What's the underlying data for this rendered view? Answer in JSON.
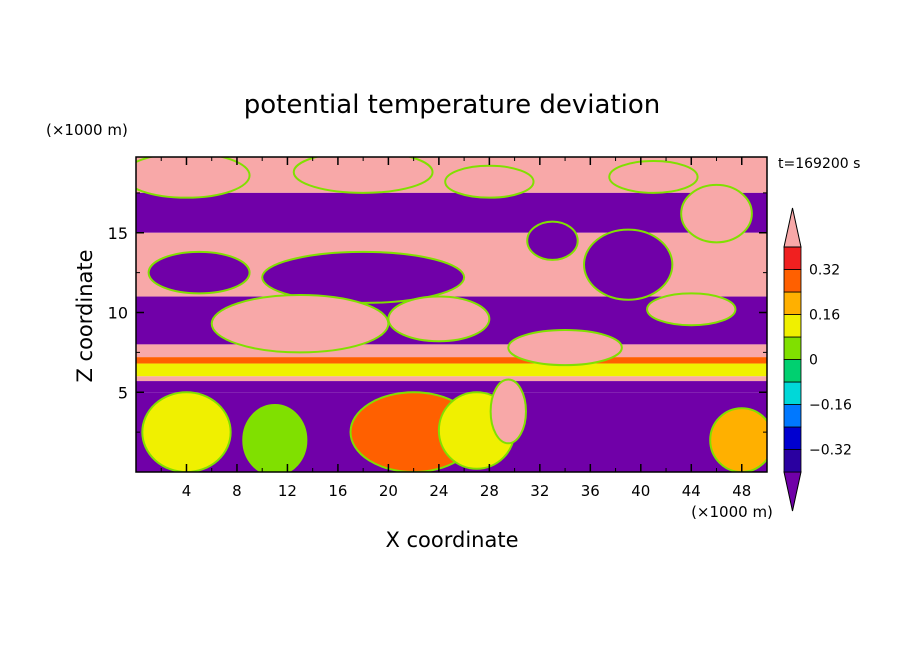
{
  "chart_data": {
    "type": "heatmap",
    "title": "potential temperature deviation",
    "xlabel": "X coordinate",
    "ylabel": "Z coordinate",
    "x_unit": "(×1000 m)",
    "y_unit": "(×1000 m)",
    "time_label": "t=169200 s",
    "xlim": [
      0,
      50
    ],
    "ylim": [
      0,
      19.75
    ],
    "x_ticks": [
      4,
      8,
      12,
      16,
      20,
      24,
      28,
      32,
      36,
      40,
      44,
      48
    ],
    "y_ticks": [
      5,
      10,
      15
    ],
    "colorbar": {
      "tick_labels": [
        "0.32",
        "0.16",
        "0",
        "−0.16",
        "−0.32"
      ],
      "tick_values": [
        0.32,
        0.16,
        0,
        -0.16,
        -0.32
      ],
      "levels": [
        -0.4,
        -0.32,
        -0.24,
        -0.16,
        -0.08,
        0,
        0.08,
        0.16,
        0.24,
        0.32,
        0.4
      ],
      "colors": [
        "#7000a8",
        "#2a00a0",
        "#0000d0",
        "#0078ff",
        "#00d8d8",
        "#00d070",
        "#80e000",
        "#f0f000",
        "#ffb000",
        "#ff6000",
        "#f02020",
        "#f8a8a8"
      ],
      "extend": "both"
    },
    "bands": [
      {
        "z": [
          17.5,
          19.75
        ],
        "value": 0.5
      },
      {
        "z": [
          15,
          17.5
        ],
        "value": -0.5
      },
      {
        "z": [
          11,
          15
        ],
        "value": 0.5
      },
      {
        "z": [
          8,
          11
        ],
        "value": -0.5
      },
      {
        "z": [
          7.2,
          8
        ],
        "value": 0.4
      },
      {
        "z": [
          6.8,
          7.2
        ],
        "value": 0.3
      },
      {
        "z": [
          6.0,
          6.8
        ],
        "value": 0.15
      },
      {
        "z": [
          5.7,
          6.0
        ],
        "value": 0.5
      },
      {
        "z": [
          5.0,
          5.7
        ],
        "value": -0.5
      },
      {
        "z": [
          0,
          5.0
        ],
        "value": -0.45
      }
    ],
    "blobs": [
      {
        "x": 4,
        "z": 18.6,
        "rx": 5,
        "rz": 1.4,
        "value": 0.5
      },
      {
        "x": 18,
        "z": 18.8,
        "rx": 5.5,
        "rz": 1.3,
        "value": 0.5
      },
      {
        "x": 28,
        "z": 18.2,
        "rx": 3.5,
        "rz": 1.0,
        "value": 0.5
      },
      {
        "x": 41,
        "z": 18.5,
        "rx": 3.5,
        "rz": 1.0,
        "value": 0.5
      },
      {
        "x": 46,
        "z": 16.2,
        "rx": 2.8,
        "rz": 1.8,
        "value": 0.5
      },
      {
        "x": 33,
        "z": 14.5,
        "rx": 2.0,
        "rz": 1.2,
        "value": -0.5
      },
      {
        "x": 39,
        "z": 13.0,
        "rx": 3.5,
        "rz": 2.2,
        "value": -0.5
      },
      {
        "x": 18,
        "z": 12.2,
        "rx": 8.0,
        "rz": 1.6,
        "value": -0.5
      },
      {
        "x": 5,
        "z": 12.5,
        "rx": 4.0,
        "rz": 1.3,
        "value": -0.5
      },
      {
        "x": 44,
        "z": 10.2,
        "rx": 3.5,
        "rz": 1.0,
        "value": 0.5
      },
      {
        "x": 13,
        "z": 9.3,
        "rx": 7.0,
        "rz": 1.8,
        "value": 0.5
      },
      {
        "x": 24,
        "z": 9.6,
        "rx": 4.0,
        "rz": 1.4,
        "value": 0.5
      },
      {
        "x": 34,
        "z": 7.8,
        "rx": 4.5,
        "rz": 1.1,
        "value": 0.5
      },
      {
        "x": 4,
        "z": 2.5,
        "rx": 3.5,
        "rz": 2.5,
        "value": 0.1
      },
      {
        "x": 11,
        "z": 2.0,
        "rx": 2.5,
        "rz": 2.2,
        "value": 0.05
      },
      {
        "x": 22,
        "z": 2.5,
        "rx": 5.0,
        "rz": 2.5,
        "value": 0.3
      },
      {
        "x": 27,
        "z": 2.6,
        "rx": 3.0,
        "rz": 2.4,
        "value": 0.1
      },
      {
        "x": 29.5,
        "z": 3.8,
        "rx": 1.4,
        "rz": 2.0,
        "value": 0.5
      },
      {
        "x": 48,
        "z": 2.0,
        "rx": 2.5,
        "rz": 2.0,
        "value": 0.2
      }
    ]
  }
}
